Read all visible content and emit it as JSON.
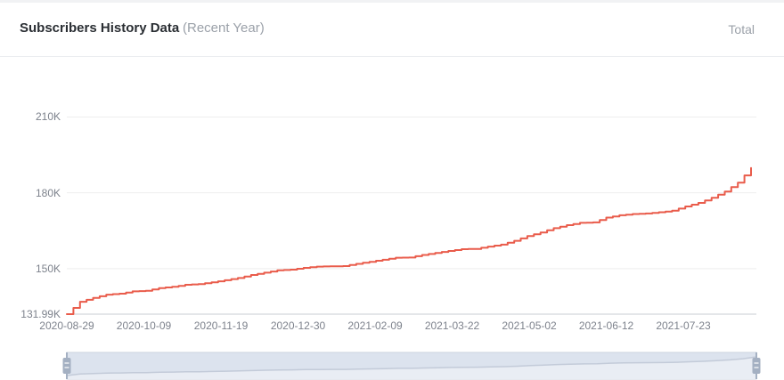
{
  "header": {
    "title": "Subscribers History Data",
    "subtitle": "(Recent Year)",
    "legend": "Total"
  },
  "colors": {
    "line": "#e95c4b",
    "gridline": "#eeeeee",
    "axis_line": "#c9ccd3",
    "axis_text": "#7d828c",
    "slider_fill": "#dce3ee",
    "slider_shadow_fill": "#e9edf4",
    "slider_line": "#c3cbd9",
    "slider_border": "#ccd3df",
    "slider_handle": "#a4b0c2"
  },
  "chart_data": {
    "type": "line",
    "style": "stepped",
    "title": "Subscribers History Data (Recent Year)",
    "unit": "K (thousands of subscribers)",
    "grid": true,
    "legend_position": "top-right",
    "y_min": 131.99,
    "y_max": 210,
    "y_ticks": [
      {
        "label": "131.99K",
        "value": 131.99
      },
      {
        "label": "150K",
        "value": 150
      },
      {
        "label": "180K",
        "value": 180
      },
      {
        "label": "210K",
        "value": 210
      }
    ],
    "x_ticks": [
      "2020-08-29",
      "2020-10-09",
      "2020-11-19",
      "2020-12-30",
      "2021-02-09",
      "2021-03-22",
      "2021-05-02",
      "2021-06-12",
      "2021-07-23"
    ],
    "series": [
      {
        "name": "Total",
        "points": [
          [
            "2020-08-29",
            131.99
          ],
          [
            "2020-09-05",
            136.9
          ],
          [
            "2020-09-12",
            138.4
          ],
          [
            "2020-09-19",
            139.7
          ],
          [
            "2020-09-26",
            140.1
          ],
          [
            "2020-10-03",
            141.0
          ],
          [
            "2020-10-10",
            141.2
          ],
          [
            "2020-10-17",
            142.3
          ],
          [
            "2020-10-24",
            142.8
          ],
          [
            "2020-10-31",
            143.6
          ],
          [
            "2020-11-07",
            143.9
          ],
          [
            "2020-11-14",
            144.6
          ],
          [
            "2020-11-21",
            145.4
          ],
          [
            "2020-11-28",
            146.3
          ],
          [
            "2020-12-05",
            147.5
          ],
          [
            "2020-12-12",
            148.4
          ],
          [
            "2020-12-19",
            149.3
          ],
          [
            "2020-12-26",
            149.6
          ],
          [
            "2021-01-02",
            150.3
          ],
          [
            "2021-01-09",
            150.8
          ],
          [
            "2021-01-16",
            150.9
          ],
          [
            "2021-01-23",
            151.0
          ],
          [
            "2021-01-30",
            151.9
          ],
          [
            "2021-02-06",
            152.7
          ],
          [
            "2021-02-13",
            153.5
          ],
          [
            "2021-02-20",
            154.3
          ],
          [
            "2021-02-27",
            154.4
          ],
          [
            "2021-03-06",
            155.4
          ],
          [
            "2021-03-13",
            156.2
          ],
          [
            "2021-03-20",
            157.0
          ],
          [
            "2021-03-27",
            157.7
          ],
          [
            "2021-04-03",
            157.8
          ],
          [
            "2021-04-10",
            158.7
          ],
          [
            "2021-04-17",
            159.5
          ],
          [
            "2021-04-24",
            161.0
          ],
          [
            "2021-05-01",
            162.9
          ],
          [
            "2021-05-08",
            164.3
          ],
          [
            "2021-05-15",
            166.0
          ],
          [
            "2021-05-22",
            167.2
          ],
          [
            "2021-05-29",
            168.1
          ],
          [
            "2021-06-05",
            168.3
          ],
          [
            "2021-06-12",
            170.2
          ],
          [
            "2021-06-19",
            171.1
          ],
          [
            "2021-06-26",
            171.6
          ],
          [
            "2021-07-03",
            171.8
          ],
          [
            "2021-07-10",
            172.3
          ],
          [
            "2021-07-17",
            172.9
          ],
          [
            "2021-07-24",
            174.6
          ],
          [
            "2021-07-31",
            176.0
          ],
          [
            "2021-08-07",
            178.0
          ],
          [
            "2021-08-14",
            180.5
          ],
          [
            "2021-08-21",
            184.0
          ],
          [
            "2021-08-28",
            189.8
          ]
        ]
      }
    ]
  }
}
